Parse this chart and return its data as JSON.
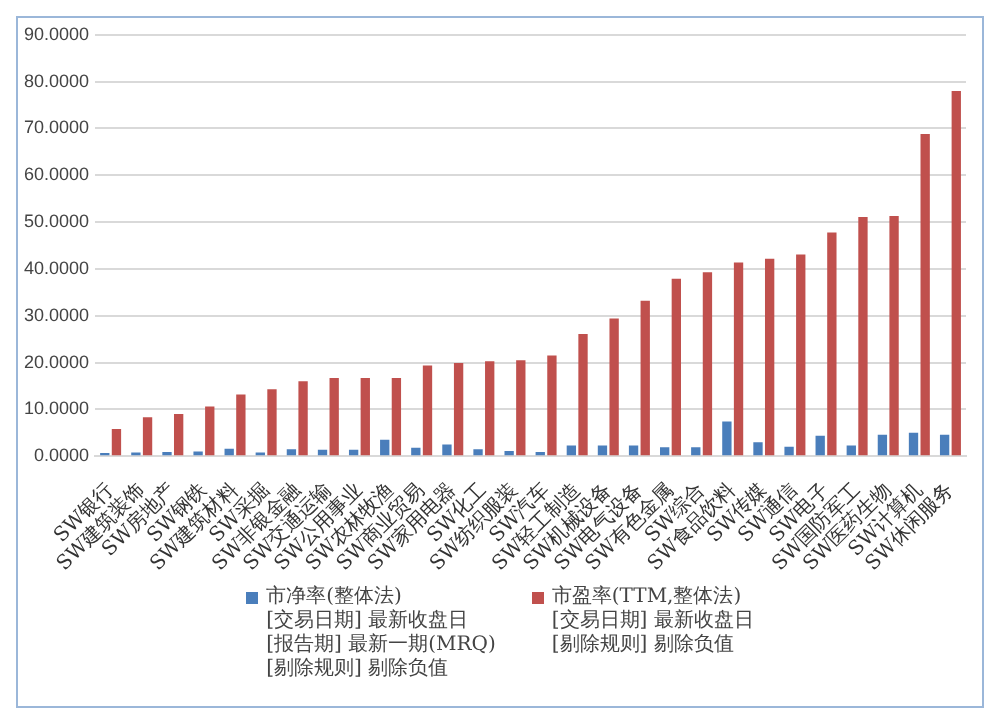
{
  "chart_data": {
    "type": "bar",
    "categories": [
      "SW银行",
      "SW建筑装饰",
      "SW房地产",
      "SW钢铁",
      "SW建筑材料",
      "SW采掘",
      "SW非银金融",
      "SW交通运输",
      "SW公用事业",
      "SW农林牧渔",
      "SW商业贸易",
      "SW家用电器",
      "SW化工",
      "SW纺织服装",
      "SW汽车",
      "SW轻工制造",
      "SW机械设备",
      "SW电气设备",
      "SW有色金属",
      "SW综合",
      "SW食品饮料",
      "SW传媒",
      "SW通信",
      "SW电子",
      "SW国防军工",
      "SW医药生物",
      "SW计算机",
      "SW休闲服务"
    ],
    "series": [
      {
        "name": "市净率(整体法)\n[交易日期] 最新收盘日\n[报告期] 最新一期(MRQ)\n[剔除规则] 剔除负值",
        "color": "#4a7ebb",
        "values": [
          0.7,
          0.8,
          0.9,
          1.0,
          1.6,
          0.8,
          1.5,
          1.4,
          1.4,
          3.5,
          1.8,
          2.5,
          1.5,
          1.1,
          0.9,
          2.3,
          2.3,
          2.3,
          1.9,
          1.9,
          7.4,
          3.0,
          2.0,
          4.4,
          2.3,
          4.6,
          5.0,
          4.6
        ]
      },
      {
        "name": "市盈率(TTM,整体法)\n[交易日期] 最新收盘日\n[剔除规则] 剔除负值",
        "color": "#c0504d",
        "values": [
          5.8,
          8.3,
          9.0,
          10.6,
          13.2,
          14.3,
          16.0,
          16.7,
          16.7,
          16.7,
          19.4,
          19.9,
          20.3,
          20.5,
          21.5,
          26.1,
          29.4,
          33.2,
          37.9,
          39.3,
          41.4,
          42.2,
          43.1,
          47.8,
          51.1,
          51.3,
          68.8,
          78.0
        ]
      }
    ],
    "ylim": [
      0,
      90
    ],
    "yticks": [
      {
        "value": 0,
        "label": "0.0000"
      },
      {
        "value": 10,
        "label": "10.0000"
      },
      {
        "value": 20,
        "label": "20.0000"
      },
      {
        "value": 30,
        "label": "30.0000"
      },
      {
        "value": 40,
        "label": "40.0000"
      },
      {
        "value": 50,
        "label": "50.0000"
      },
      {
        "value": 60,
        "label": "60.0000"
      },
      {
        "value": 70,
        "label": "70.0000"
      },
      {
        "value": 80,
        "label": "80.0000"
      },
      {
        "value": 90,
        "label": "90.0000"
      }
    ],
    "grid": "y",
    "legend": "bottom"
  }
}
